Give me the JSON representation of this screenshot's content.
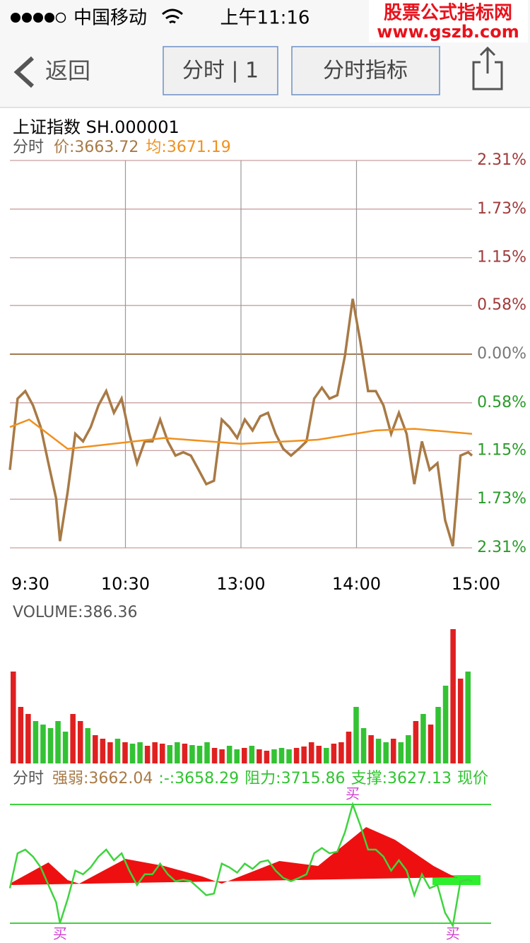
{
  "status": {
    "carrier": "中国移动",
    "time": "上午11:16",
    "watermark": [
      "股票公式指标网",
      "www.gszb.com"
    ]
  },
  "nav": {
    "back": "返回",
    "buttons": [
      "分时 | 1",
      "分时指标"
    ]
  },
  "chart_data": {
    "type": "line",
    "title": "上证指数 SH.000001",
    "label": "分时",
    "legend": [
      {
        "name": "价:",
        "value": 3663.72,
        "color": "#a87a46"
      },
      {
        "name": "均:",
        "value": 3671.19,
        "color": "#f0901e"
      }
    ],
    "xlim": [
      0,
      240
    ],
    "xticks": [
      {
        "value": 0,
        "label": "9:30"
      },
      {
        "value": 60,
        "label": "10:30"
      },
      {
        "value": 120,
        "label": "13:00"
      },
      {
        "value": 180,
        "label": "14:00"
      },
      {
        "value": 240,
        "label": "15:00"
      }
    ],
    "ylim": [
      -2.31,
      2.31
    ],
    "yticks": [
      {
        "value": 2.31,
        "label": "2.31%"
      },
      {
        "value": 1.73,
        "label": "1.73%"
      },
      {
        "value": 1.15,
        "label": "1.15%"
      },
      {
        "value": 0.58,
        "label": "0.58%"
      },
      {
        "value": 0,
        "label": "0.00%"
      },
      {
        "value": -0.58,
        "label": "0.58%"
      },
      {
        "value": -1.15,
        "label": "1.15%"
      },
      {
        "value": -1.73,
        "label": "1.73%"
      },
      {
        "value": -2.31,
        "label": "2.31%"
      }
    ],
    "series": [
      {
        "name": "价",
        "color": "#a87a46",
        "x": [
          0,
          4,
          8,
          12,
          16,
          20,
          24,
          26,
          30,
          34,
          38,
          42,
          46,
          50,
          54,
          58,
          62,
          66,
          70,
          74,
          78,
          82,
          86,
          90,
          94,
          98,
          102,
          106,
          110,
          114,
          118,
          122,
          126,
          130,
          134,
          138,
          142,
          146,
          150,
          154,
          158,
          162,
          166,
          170,
          174,
          178,
          182,
          186,
          190,
          194,
          198,
          202,
          206,
          210,
          214,
          218,
          222,
          226,
          230,
          234,
          238,
          240
        ],
        "values": [
          -1.38,
          -0.53,
          -0.44,
          -0.61,
          -0.87,
          -1.3,
          -1.72,
          -2.23,
          -1.64,
          -0.95,
          -1.04,
          -0.87,
          -0.61,
          -0.44,
          -0.7,
          -0.53,
          -0.95,
          -1.3,
          -1.04,
          -1.04,
          -0.78,
          -1.04,
          -1.21,
          -1.17,
          -1.21,
          -1.38,
          -1.55,
          -1.51,
          -0.78,
          -0.87,
          -1.0,
          -0.78,
          -0.91,
          -0.74,
          -0.7,
          -0.95,
          -1.13,
          -1.21,
          -1.13,
          -1.04,
          -0.53,
          -0.4,
          -0.53,
          -0.49,
          -0.02,
          0.66,
          0.15,
          -0.44,
          -0.44,
          -0.61,
          -0.95,
          -0.7,
          -0.95,
          -1.55,
          -1.04,
          -1.38,
          -1.3,
          -1.98,
          -2.29,
          -1.21,
          -1.17,
          -1.21
        ]
      },
      {
        "name": "均",
        "color": "#f0901e",
        "x": [
          0,
          10,
          30,
          80,
          120,
          160,
          190,
          210,
          240
        ],
        "values": [
          -0.87,
          -0.78,
          -1.13,
          -1.0,
          -1.07,
          -1.02,
          -0.91,
          -0.89,
          -0.95
        ]
      }
    ]
  },
  "volume": {
    "type": "bar",
    "label": "VOLUME:386.36",
    "vlim": [
      0,
      200
    ],
    "values": [
      130,
      80,
      70,
      60,
      55,
      50,
      60,
      45,
      70,
      60,
      50,
      40,
      35,
      30,
      35,
      30,
      28,
      30,
      25,
      30,
      28,
      26,
      30,
      28,
      26,
      25,
      30,
      22,
      20,
      25,
      20,
      22,
      25,
      20,
      18,
      20,
      22,
      20,
      22,
      24,
      30,
      25,
      22,
      28,
      30,
      45,
      80,
      50,
      40,
      35,
      30,
      35,
      30,
      40,
      60,
      70,
      55,
      80,
      110,
      190,
      120,
      130
    ]
  },
  "indicator": {
    "label": "分时",
    "legend": [
      {
        "name": "强弱:",
        "value": "3662.04",
        "color": "#a87a46"
      },
      {
        "name": ":-",
        "value": ":3658.29",
        "color": "#2fc42f"
      }
    ],
    "resistance": {
      "name": "阻力:",
      "value": 3715.86
    },
    "support": {
      "name": "支撑:",
      "value": 3627.13
    },
    "price_label": "现价",
    "area": {
      "x": [
        0,
        20,
        30,
        36,
        60,
        80,
        100,
        110,
        140,
        160,
        185,
        200,
        220,
        232
      ],
      "values": [
        3656.71,
        3672.55,
        3659.35,
        3656.71,
        3675.19,
        3669.91,
        3661.99,
        3656.71,
        3673.61,
        3669.91,
        3698.96,
        3689.45,
        3669.91,
        3660.93
      ]
    },
    "signals": [
      {
        "x": 26,
        "label": "买",
        "pos": "bottom"
      },
      {
        "x": 178,
        "label": "买",
        "pos": "top"
      },
      {
        "x": 230,
        "label": "买",
        "pos": "bottom"
      }
    ]
  }
}
